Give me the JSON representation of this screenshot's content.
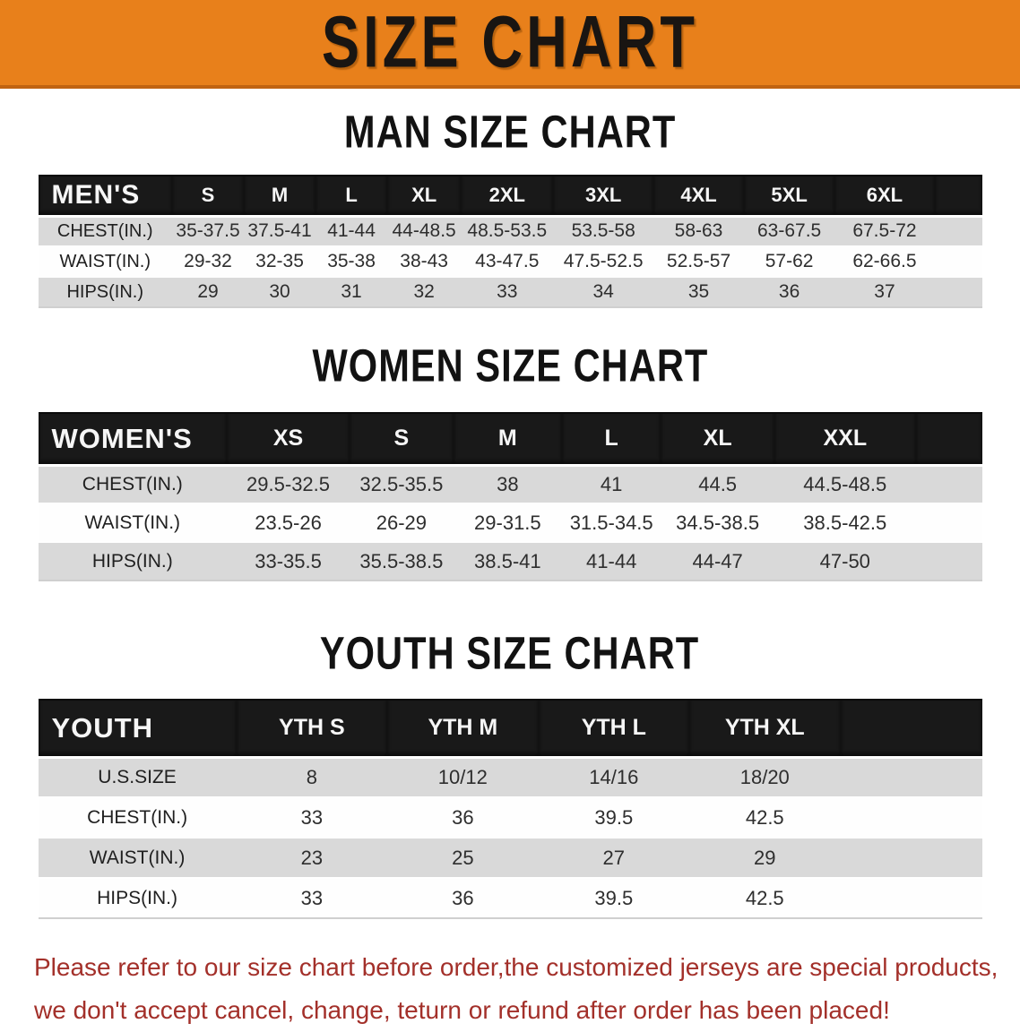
{
  "banner": {
    "title": "SIZE CHART",
    "bg_color": "#e8801b"
  },
  "sections": [
    {
      "heading": "MAN SIZE CHART",
      "label": "MEN'S",
      "columns": [
        "S",
        "M",
        "L",
        "XL",
        "2XL",
        "3XL",
        "4XL",
        "5XL",
        "6XL"
      ],
      "rows": [
        {
          "label": "CHEST(IN.)",
          "values": [
            "35-37.5",
            "37.5-41",
            "41-44",
            "44-48.5",
            "48.5-53.5",
            "53.5-58",
            "58-63",
            "63-67.5",
            "67.5-72"
          ]
        },
        {
          "label": "WAIST(IN.)",
          "values": [
            "29-32",
            "32-35",
            "35-38",
            "38-43",
            "43-47.5",
            "47.5-52.5",
            "52.5-57",
            "57-62",
            "62-66.5"
          ]
        },
        {
          "label": "HIPS(IN.)",
          "values": [
            "29",
            "30",
            "31",
            "32",
            "33",
            "34",
            "35",
            "36",
            "37"
          ]
        }
      ]
    },
    {
      "heading": "WOMEN SIZE CHART",
      "label": "WOMEN'S",
      "columns": [
        "XS",
        "S",
        "M",
        "L",
        "XL",
        "XXL"
      ],
      "rows": [
        {
          "label": "CHEST(IN.)",
          "values": [
            "29.5-32.5",
            "32.5-35.5",
            "38",
            "41",
            "44.5",
            "44.5-48.5"
          ]
        },
        {
          "label": "WAIST(IN.)",
          "values": [
            "23.5-26",
            "26-29",
            "29-31.5",
            "31.5-34.5",
            "34.5-38.5",
            "38.5-42.5"
          ]
        },
        {
          "label": "HIPS(IN.)",
          "values": [
            "33-35.5",
            "35.5-38.5",
            "38.5-41",
            "41-44",
            "44-47",
            "47-50"
          ]
        }
      ]
    },
    {
      "heading": "YOUTH SIZE CHART",
      "label": "YOUTH",
      "columns": [
        "YTH S",
        "YTH M",
        "YTH L",
        "YTH XL"
      ],
      "rows": [
        {
          "label": "U.S.SIZE",
          "values": [
            "8",
            "10/12",
            "14/16",
            "18/20"
          ]
        },
        {
          "label": "CHEST(IN.)",
          "values": [
            "33",
            "36",
            "39.5",
            "42.5"
          ]
        },
        {
          "label": "WAIST(IN.)",
          "values": [
            "23",
            "25",
            "27",
            "29"
          ]
        },
        {
          "label": "HIPS(IN.)",
          "values": [
            "33",
            "36",
            "39.5",
            "42.5"
          ]
        }
      ]
    }
  ],
  "footer": {
    "line1": "Please refer to our size chart before order,the customized jerseys are special products,",
    "line2": "we don't accept cancel, change, teturn or refund after order has been placed!",
    "text_color": "#a3302a"
  }
}
